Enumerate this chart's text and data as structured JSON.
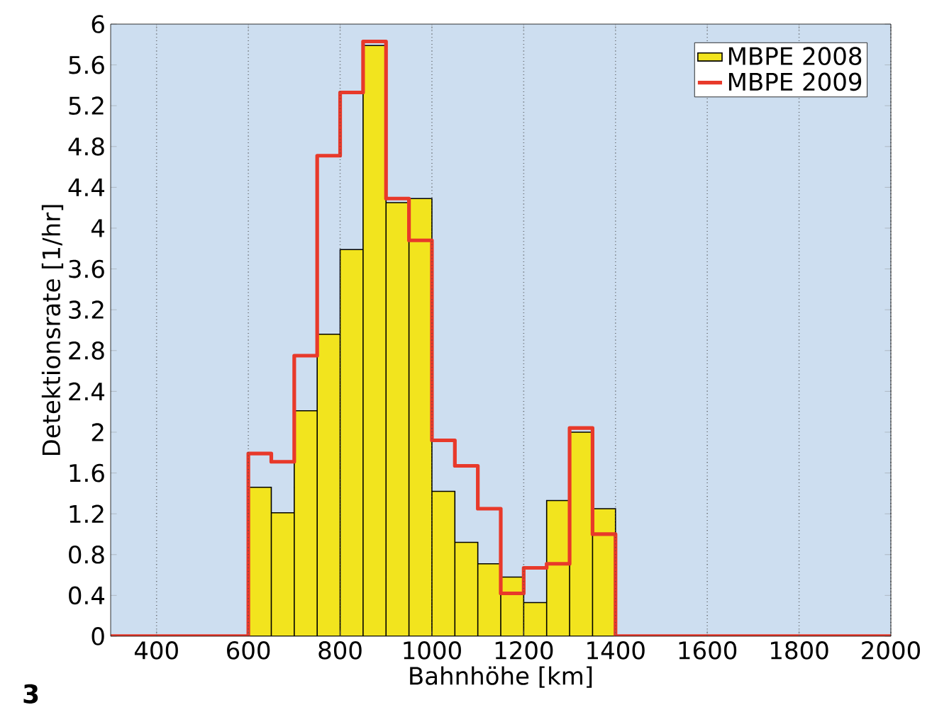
{
  "chart_data": {
    "type": "histogram",
    "xlabel": "Bahnhöhe [km]",
    "ylabel": "Detektionsrate [1/hr]",
    "bins": [
      600,
      650,
      700,
      750,
      800,
      850,
      900,
      950,
      1000,
      1050,
      1100,
      1150,
      1200,
      1250,
      1300,
      1350,
      1400
    ],
    "series": [
      {
        "name": "MBPE 2008",
        "color": "#f2e41e",
        "values": [
          1.46,
          1.21,
          2.21,
          2.96,
          3.79,
          5.79,
          4.25,
          4.29,
          1.42,
          0.92,
          0.71,
          0.58,
          0.33,
          1.33,
          2.0,
          1.25
        ]
      },
      {
        "name": "MBPE 2009",
        "type": "step",
        "color": "#e8392a",
        "x": [
          300,
          600,
          650,
          700,
          750,
          800,
          850,
          900,
          950,
          1000,
          1050,
          1100,
          1150,
          1200,
          1250,
          1300,
          1350,
          1400,
          2000
        ],
        "values": [
          0,
          1.79,
          1.71,
          2.75,
          4.71,
          5.33,
          5.83,
          4.29,
          3.88,
          1.92,
          1.67,
          1.25,
          0.42,
          0.67,
          0.71,
          2.04,
          1.0,
          0,
          0
        ]
      }
    ],
    "xlim": [
      300,
      2000
    ],
    "xticks": [
      400,
      600,
      800,
      1000,
      1200,
      1400,
      1600,
      1800,
      2000
    ],
    "ylim": [
      0,
      6
    ],
    "yticks": [
      0,
      0.4,
      0.8,
      1.2,
      1.6,
      2,
      2.4,
      2.8,
      3.2,
      3.6,
      4,
      4.4,
      4.8,
      5.2,
      5.6,
      6
    ],
    "grid": "x",
    "legend": "top right",
    "annotations": [
      "3"
    ]
  }
}
